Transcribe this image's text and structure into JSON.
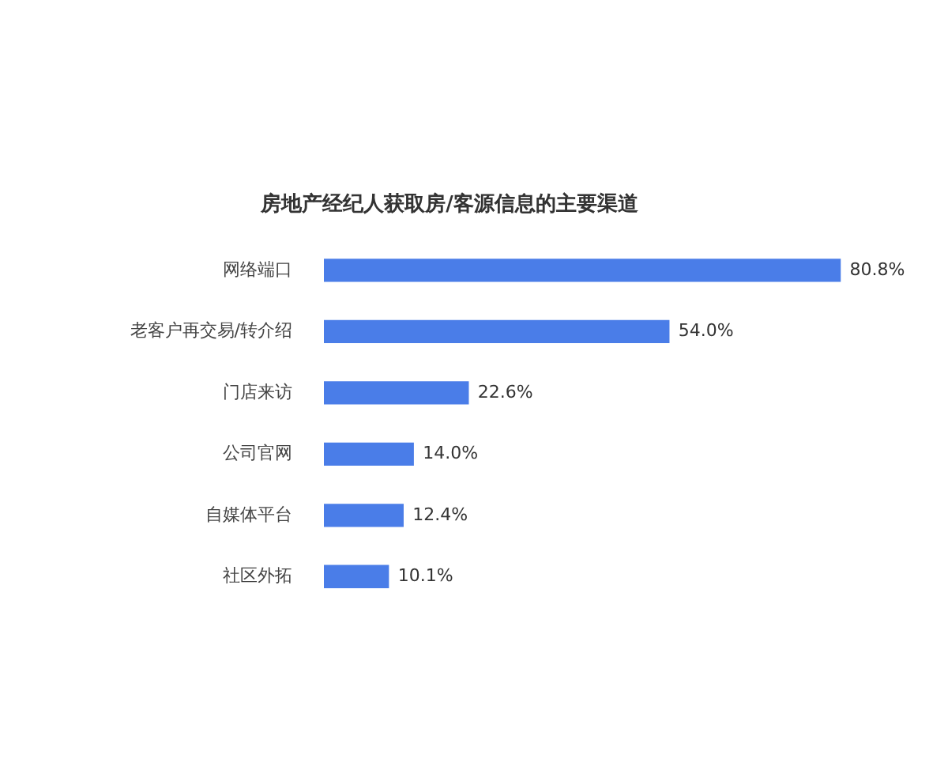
{
  "chart_data": {
    "type": "bar",
    "orientation": "horizontal",
    "title": "房地产经纪人获取房/客源信息的主要渠道",
    "categories": [
      "网络端口",
      "老客户再交易/转介绍",
      "门店来访",
      "公司官网",
      "自媒体平台",
      "社区外拓"
    ],
    "values": [
      80.8,
      54.0,
      22.6,
      14.0,
      12.4,
      10.1
    ],
    "value_labels": [
      "80.8%",
      "54.0%",
      "22.6%",
      "14.0%",
      "12.4%",
      "10.1%"
    ],
    "color": "#4a7de8"
  }
}
